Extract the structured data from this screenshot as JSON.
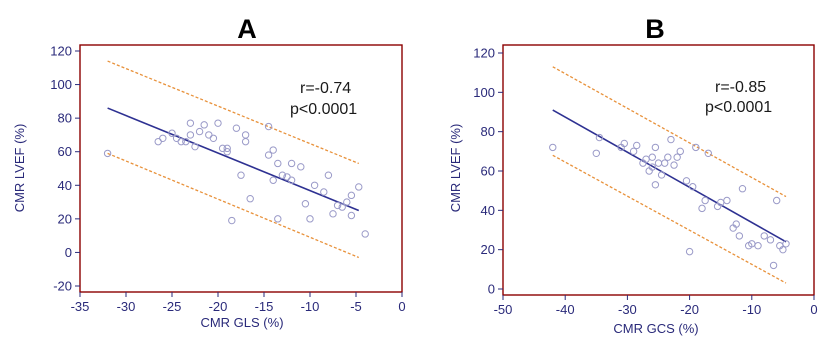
{
  "chart_data": [
    {
      "type": "scatter",
      "panel_label": "A",
      "xlabel": "CMR GLS (%)",
      "ylabel": "CMR LVEF (%)",
      "xlim": [
        -35,
        0
      ],
      "ylim": [
        -20,
        120
      ],
      "xticks": [
        -35,
        -30,
        -25,
        -20,
        -15,
        -10,
        -5,
        0
      ],
      "yticks": [
        -20,
        0,
        20,
        40,
        60,
        80,
        100,
        120
      ],
      "stat_r": "r=-0.74",
      "stat_p": "p<0.0001",
      "regression": {
        "x": [
          -32,
          -4.7
        ],
        "y": [
          86,
          25
        ]
      },
      "ci_upper": {
        "x": [
          -32,
          -4.7
        ],
        "y": [
          114,
          53
        ]
      },
      "ci_lower": {
        "x": [
          -32,
          -4.7
        ],
        "y": [
          59,
          -3
        ]
      },
      "points": [
        {
          "x": -32,
          "y": 59
        },
        {
          "x": -26.5,
          "y": 66
        },
        {
          "x": -26,
          "y": 68
        },
        {
          "x": -25,
          "y": 71
        },
        {
          "x": -24.5,
          "y": 68
        },
        {
          "x": -24,
          "y": 66
        },
        {
          "x": -23.5,
          "y": 66
        },
        {
          "x": -23,
          "y": 70
        },
        {
          "x": -23,
          "y": 77
        },
        {
          "x": -22.5,
          "y": 63
        },
        {
          "x": -22,
          "y": 72
        },
        {
          "x": -21.5,
          "y": 76
        },
        {
          "x": -21,
          "y": 70
        },
        {
          "x": -20.5,
          "y": 68
        },
        {
          "x": -20,
          "y": 77
        },
        {
          "x": -19.5,
          "y": 62
        },
        {
          "x": -19,
          "y": 60
        },
        {
          "x": -19,
          "y": 62
        },
        {
          "x": -18.5,
          "y": 19
        },
        {
          "x": -18,
          "y": 74
        },
        {
          "x": -17.5,
          "y": 46
        },
        {
          "x": -17,
          "y": 66
        },
        {
          "x": -17,
          "y": 70
        },
        {
          "x": -16.5,
          "y": 32
        },
        {
          "x": -14.5,
          "y": 75
        },
        {
          "x": -14.5,
          "y": 58
        },
        {
          "x": -14,
          "y": 61
        },
        {
          "x": -14,
          "y": 43
        },
        {
          "x": -13.5,
          "y": 20
        },
        {
          "x": -13.5,
          "y": 53
        },
        {
          "x": -13,
          "y": 46
        },
        {
          "x": -12.5,
          "y": 45
        },
        {
          "x": -12,
          "y": 53
        },
        {
          "x": -12,
          "y": 43
        },
        {
          "x": -11,
          "y": 51
        },
        {
          "x": -10.5,
          "y": 29
        },
        {
          "x": -10,
          "y": 20
        },
        {
          "x": -9.5,
          "y": 40
        },
        {
          "x": -8.5,
          "y": 36
        },
        {
          "x": -8,
          "y": 46
        },
        {
          "x": -7.5,
          "y": 23
        },
        {
          "x": -7,
          "y": 28
        },
        {
          "x": -6.5,
          "y": 27
        },
        {
          "x": -6,
          "y": 30
        },
        {
          "x": -5.5,
          "y": 34
        },
        {
          "x": -5.5,
          "y": 22
        },
        {
          "x": -4.7,
          "y": 39
        },
        {
          "x": -4,
          "y": 11
        }
      ]
    },
    {
      "type": "scatter",
      "panel_label": "B",
      "xlabel": "CMR GCS (%)",
      "ylabel": "CMR LVEF (%)",
      "xlim": [
        -50,
        0
      ],
      "ylim": [
        0,
        120
      ],
      "xticks": [
        -50,
        -40,
        -30,
        -20,
        -10,
        0
      ],
      "yticks": [
        0,
        20,
        40,
        60,
        80,
        100,
        120
      ],
      "stat_r": "r=-0.85",
      "stat_p": "p<0.0001",
      "regression": {
        "x": [
          -42,
          -4.5
        ],
        "y": [
          91,
          24
        ]
      },
      "ci_upper": {
        "x": [
          -42,
          -4.5
        ],
        "y": [
          113,
          47
        ]
      },
      "ci_lower": {
        "x": [
          -42,
          -4.5
        ],
        "y": [
          68,
          3
        ]
      },
      "points": [
        {
          "x": -42,
          "y": 72
        },
        {
          "x": -35,
          "y": 69
        },
        {
          "x": -34.5,
          "y": 77
        },
        {
          "x": -31,
          "y": 72
        },
        {
          "x": -30.5,
          "y": 74
        },
        {
          "x": -29,
          "y": 70
        },
        {
          "x": -28.5,
          "y": 73
        },
        {
          "x": -27.5,
          "y": 64
        },
        {
          "x": -27,
          "y": 66
        },
        {
          "x": -26.5,
          "y": 60
        },
        {
          "x": -26,
          "y": 62
        },
        {
          "x": -26,
          "y": 67
        },
        {
          "x": -25.5,
          "y": 72
        },
        {
          "x": -25.5,
          "y": 53
        },
        {
          "x": -25,
          "y": 64
        },
        {
          "x": -24.5,
          "y": 58
        },
        {
          "x": -24,
          "y": 64
        },
        {
          "x": -23.5,
          "y": 67
        },
        {
          "x": -23,
          "y": 76
        },
        {
          "x": -22.5,
          "y": 63
        },
        {
          "x": -22,
          "y": 67
        },
        {
          "x": -21.5,
          "y": 70
        },
        {
          "x": -20.5,
          "y": 55
        },
        {
          "x": -20,
          "y": 19
        },
        {
          "x": -19.5,
          "y": 52
        },
        {
          "x": -19,
          "y": 72
        },
        {
          "x": -18,
          "y": 41
        },
        {
          "x": -17.5,
          "y": 45
        },
        {
          "x": -17,
          "y": 69
        },
        {
          "x": -15.5,
          "y": 42
        },
        {
          "x": -15,
          "y": 44
        },
        {
          "x": -14,
          "y": 45
        },
        {
          "x": -13,
          "y": 31
        },
        {
          "x": -12.5,
          "y": 33
        },
        {
          "x": -12,
          "y": 27
        },
        {
          "x": -11.5,
          "y": 51
        },
        {
          "x": -10.5,
          "y": 22
        },
        {
          "x": -10,
          "y": 23
        },
        {
          "x": -9,
          "y": 22
        },
        {
          "x": -8,
          "y": 27
        },
        {
          "x": -7,
          "y": 25
        },
        {
          "x": -6.5,
          "y": 12
        },
        {
          "x": -6,
          "y": 45
        },
        {
          "x": -5.5,
          "y": 22
        },
        {
          "x": -5,
          "y": 20
        },
        {
          "x": -4.5,
          "y": 23
        }
      ]
    }
  ]
}
